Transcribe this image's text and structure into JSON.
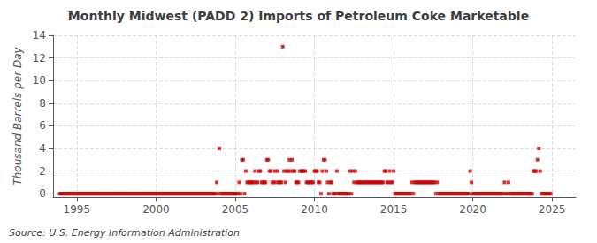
{
  "chart_data": {
    "type": "scatter",
    "title": "Monthly Midwest (PADD 2) Imports of Petroleum Coke Marketable",
    "ylabel": "Thousand Barrels per Day",
    "annotations": [
      "Source: U.S. Energy Information Administration"
    ],
    "xlim": [
      1993.5,
      2026.5
    ],
    "ylim": [
      -0.3,
      14
    ],
    "xticks": [
      1995,
      2000,
      2005,
      2010,
      2015,
      2020,
      2025
    ],
    "yticks": [
      0,
      2,
      4,
      6,
      8,
      10,
      12,
      14
    ],
    "grid": true,
    "color": "#cc0000",
    "marker": "square",
    "x": [
      1993.917,
      1994.0,
      1994.083,
      1994.167,
      1994.25,
      1994.333,
      1994.417,
      1994.5,
      1994.583,
      1994.667,
      1994.75,
      1994.833,
      1994.917,
      1995.0,
      1995.083,
      1995.167,
      1995.25,
      1995.333,
      1995.417,
      1995.5,
      1995.583,
      1995.667,
      1995.75,
      1995.833,
      1995.917,
      1996.0,
      1996.083,
      1996.167,
      1996.25,
      1996.333,
      1996.417,
      1996.5,
      1996.583,
      1996.667,
      1996.75,
      1996.833,
      1996.917,
      1997.0,
      1997.083,
      1997.167,
      1997.25,
      1997.333,
      1997.417,
      1997.5,
      1997.583,
      1997.667,
      1997.75,
      1997.833,
      1997.917,
      1998.0,
      1998.083,
      1998.167,
      1998.25,
      1998.333,
      1998.417,
      1998.5,
      1998.583,
      1998.667,
      1998.75,
      1998.833,
      1998.917,
      1999.0,
      1999.083,
      1999.167,
      1999.25,
      1999.333,
      1999.417,
      1999.5,
      1999.583,
      1999.667,
      1999.75,
      1999.833,
      1999.917,
      2000.0,
      2000.083,
      2000.167,
      2000.25,
      2000.333,
      2000.417,
      2000.5,
      2000.583,
      2000.667,
      2000.75,
      2000.833,
      2000.917,
      2001.0,
      2001.083,
      2001.167,
      2001.25,
      2001.333,
      2001.417,
      2001.5,
      2001.583,
      2001.667,
      2001.75,
      2001.833,
      2001.917,
      2002.0,
      2002.083,
      2002.167,
      2002.25,
      2002.333,
      2002.417,
      2002.5,
      2002.583,
      2002.667,
      2002.75,
      2002.833,
      2002.917,
      2003.0,
      2003.083,
      2003.167,
      2003.25,
      2003.333,
      2003.417,
      2003.5,
      2003.583,
      2003.667,
      2003.75,
      2003.833,
      2003.917,
      2004.0,
      2004.083,
      2004.167,
      2004.25,
      2004.333,
      2004.417,
      2004.5,
      2004.583,
      2004.667,
      2004.75,
      2004.833,
      2004.917,
      2005.0,
      2005.083,
      2005.167,
      2005.25,
      2005.333,
      2005.417,
      2005.5,
      2005.583,
      2005.667,
      2005.75,
      2005.833,
      2005.917,
      2006.0,
      2006.083,
      2006.167,
      2006.25,
      2006.333,
      2006.417,
      2006.5,
      2006.583,
      2006.667,
      2006.75,
      2006.833,
      2006.917,
      2007.0,
      2007.083,
      2007.167,
      2007.25,
      2007.333,
      2007.417,
      2007.5,
      2007.583,
      2007.667,
      2007.75,
      2007.833,
      2007.917,
      2008.0,
      2008.083,
      2008.167,
      2008.25,
      2008.333,
      2008.417,
      2008.5,
      2008.583,
      2008.667,
      2008.75,
      2008.833,
      2008.917,
      2009.0,
      2009.083,
      2009.167,
      2009.25,
      2009.333,
      2009.417,
      2009.5,
      2009.583,
      2009.667,
      2009.75,
      2009.833,
      2009.917,
      2010.0,
      2010.083,
      2010.167,
      2010.25,
      2010.333,
      2010.417,
      2010.5,
      2010.583,
      2010.667,
      2010.75,
      2010.833,
      2010.917,
      2011.0,
      2011.083,
      2011.167,
      2011.25,
      2011.333,
      2011.417,
      2011.5,
      2011.583,
      2011.667,
      2011.75,
      2011.833,
      2011.917,
      2012.0,
      2012.083,
      2012.167,
      2012.25,
      2012.333,
      2012.417,
      2012.5,
      2012.583,
      2012.667,
      2012.75,
      2012.833,
      2012.917,
      2013.0,
      2013.083,
      2013.167,
      2013.25,
      2013.333,
      2013.417,
      2013.5,
      2013.583,
      2013.667,
      2013.75,
      2013.833,
      2013.917,
      2014.0,
      2014.083,
      2014.167,
      2014.25,
      2014.333,
      2014.417,
      2014.5,
      2014.583,
      2014.667,
      2014.75,
      2014.833,
      2014.917,
      2015.0,
      2015.083,
      2015.167,
      2015.25,
      2015.333,
      2015.417,
      2015.5,
      2015.583,
      2015.667,
      2015.75,
      2015.833,
      2015.917,
      2016.0,
      2016.083,
      2016.167,
      2016.25,
      2016.333,
      2016.417,
      2016.5,
      2016.583,
      2016.667,
      2016.75,
      2016.833,
      2016.917,
      2017.0,
      2017.083,
      2017.167,
      2017.25,
      2017.333,
      2017.417,
      2017.5,
      2017.583,
      2017.667,
      2017.75,
      2017.833,
      2017.917,
      2018.0,
      2018.083,
      2018.167,
      2018.25,
      2018.333,
      2018.417,
      2018.5,
      2018.583,
      2018.667,
      2018.75,
      2018.833,
      2018.917,
      2019.0,
      2019.083,
      2019.167,
      2019.25,
      2019.333,
      2019.417,
      2019.5,
      2019.583,
      2019.667,
      2019.75,
      2019.833,
      2019.917,
      2020.0,
      2020.083,
      2020.167,
      2020.25,
      2020.333,
      2020.417,
      2020.5,
      2020.583,
      2020.667,
      2020.75,
      2020.833,
      2020.917,
      2021.0,
      2021.083,
      2021.167,
      2021.25,
      2021.333,
      2021.417,
      2021.5,
      2021.583,
      2021.667,
      2021.75,
      2021.833,
      2021.917,
      2022.0,
      2022.083,
      2022.167,
      2022.25,
      2022.333,
      2022.417,
      2022.5,
      2022.583,
      2022.667,
      2022.75,
      2022.833,
      2022.917,
      2023.0,
      2023.083,
      2023.167,
      2023.25,
      2023.333,
      2023.417,
      2023.5,
      2023.583,
      2023.667,
      2023.75,
      2023.833,
      2023.917,
      2024.0,
      2024.083,
      2024.167,
      2024.25,
      2024.333,
      2024.417,
      2024.5,
      2024.583,
      2024.667,
      2024.75,
      2024.833,
      2024.917
    ],
    "values": [
      0,
      0,
      0,
      0,
      0,
      0,
      0,
      0,
      0,
      0,
      0,
      0,
      0,
      0,
      0,
      0,
      0,
      0,
      0,
      0,
      0,
      0,
      0,
      0,
      0,
      0,
      0,
      0,
      0,
      0,
      0,
      0,
      0,
      0,
      0,
      0,
      0,
      0,
      0,
      0,
      0,
      0,
      0,
      0,
      0,
      0,
      0,
      0,
      0,
      0,
      0,
      0,
      0,
      0,
      0,
      0,
      0,
      0,
      0,
      0,
      0,
      0,
      0,
      0,
      0,
      0,
      0,
      0,
      0,
      0,
      0,
      0,
      0,
      0,
      0,
      0,
      0,
      0,
      0,
      0,
      0,
      0,
      0,
      0,
      0,
      0,
      0,
      0,
      0,
      0,
      0,
      0,
      0,
      0,
      0,
      0,
      0,
      0,
      0,
      0,
      0,
      0,
      0,
      0,
      0,
      0,
      0,
      0,
      0,
      0,
      0,
      0,
      0,
      0,
      0,
      0,
      0,
      0,
      0,
      1,
      0,
      4,
      0,
      0,
      0,
      0,
      0,
      0,
      0,
      0,
      0,
      0,
      0,
      0,
      0,
      0,
      1,
      0,
      3,
      3,
      0,
      2,
      1,
      1,
      1,
      1,
      1,
      1,
      2,
      1,
      1,
      2,
      2,
      1,
      1,
      1,
      1,
      3,
      3,
      2,
      2,
      1,
      1,
      2,
      1,
      2,
      1,
      1,
      1,
      13,
      2,
      1,
      2,
      2,
      3,
      2,
      3,
      2,
      2,
      1,
      1,
      1,
      2,
      2,
      2,
      2,
      2,
      1,
      1,
      1,
      1,
      1,
      1,
      2,
      2,
      2,
      1,
      1,
      0,
      2,
      3,
      3,
      2,
      1,
      0,
      1,
      1,
      0,
      0,
      0,
      2,
      0,
      0,
      0,
      0,
      0,
      0,
      0,
      0,
      0,
      2,
      0,
      2,
      1,
      2,
      1,
      1,
      1,
      1,
      1,
      1,
      1,
      1,
      1,
      1,
      1,
      1,
      1,
      1,
      1,
      1,
      1,
      1,
      1,
      1,
      1,
      2,
      2,
      1,
      1,
      2,
      1,
      1,
      2,
      0,
      0,
      0,
      0,
      0,
      0,
      0,
      0,
      0,
      0,
      0,
      0,
      0,
      1,
      0,
      1,
      1,
      1,
      1,
      1,
      1,
      1,
      1,
      1,
      1,
      1,
      1,
      1,
      1,
      1,
      1,
      0,
      1,
      0,
      0,
      0,
      0,
      0,
      0,
      0,
      0,
      0,
      0,
      0,
      0,
      0,
      0,
      0,
      0,
      0,
      0,
      0,
      0,
      0,
      0,
      0,
      0,
      2,
      1,
      0,
      0,
      0,
      0,
      0,
      0,
      0,
      0,
      0,
      0,
      0,
      0,
      0,
      0,
      0,
      0,
      0,
      0,
      0,
      0,
      0,
      0,
      0,
      0,
      1,
      0,
      0,
      1,
      0,
      0,
      0,
      0,
      0,
      0,
      0,
      0,
      0,
      0,
      0,
      0,
      0,
      0,
      0,
      0,
      0,
      0,
      2,
      2,
      2,
      3,
      4,
      2,
      0,
      0,
      0,
      0,
      0,
      0,
      0,
      0
    ]
  }
}
